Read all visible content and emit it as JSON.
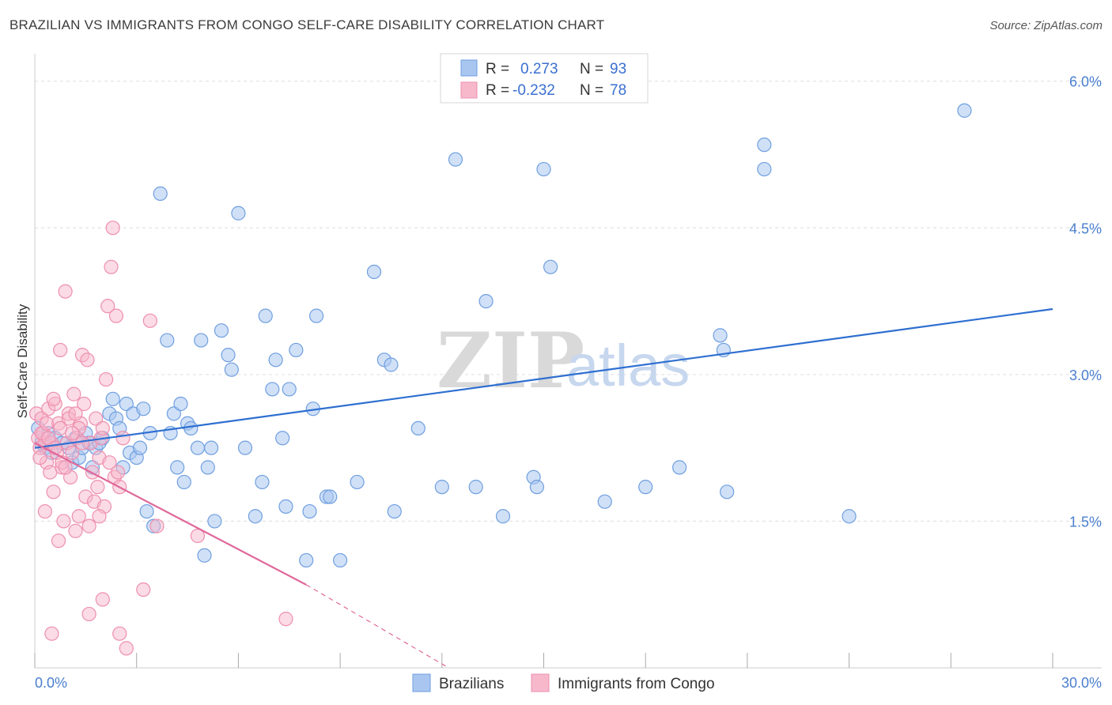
{
  "title": "BRAZILIAN VS IMMIGRANTS FROM CONGO SELF-CARE DISABILITY CORRELATION CHART",
  "source": "Source: ZipAtlas.com",
  "watermark": {
    "zip": "ZIP",
    "atlas": "atlas"
  },
  "legend": {
    "r_label": "R =",
    "n_label": "N =",
    "series": [
      {
        "r": "0.273",
        "n": "93"
      },
      {
        "r": "-0.232",
        "n": "78"
      }
    ]
  },
  "colors": {
    "blue_fill": "#a9c6f0",
    "blue_stroke": "#6f9fe0",
    "blue_line": "#2e6fd1",
    "pink_fill": "#f7b8cc",
    "pink_stroke": "#ee8fae",
    "pink_line": "#e0689a",
    "grid": "#dddddd",
    "axis_label": "#4a7fcf"
  },
  "chart_data": {
    "type": "scatter",
    "title": "BRAZILIAN VS IMMIGRANTS FROM CONGO SELF-CARE DISABILITY CORRELATION CHART",
    "xlabel": "",
    "ylabel": "Self-Care Disability",
    "xlim": [
      0,
      30
    ],
    "ylim": [
      0,
      6.2
    ],
    "x_tick_labels": [
      "0.0%",
      "30.0%"
    ],
    "y_ticks": [
      1.5,
      3.0,
      4.5,
      6.0
    ],
    "y_tick_labels": [
      "1.5%",
      "3.0%",
      "4.5%",
      "6.0%"
    ],
    "grid": true,
    "series": [
      {
        "name": "Brazilians",
        "color": "#6f9fe0",
        "points": [
          [
            0.1,
            2.45
          ],
          [
            0.2,
            2.3
          ],
          [
            0.3,
            2.25
          ],
          [
            0.4,
            2.4
          ],
          [
            0.5,
            2.2
          ],
          [
            0.6,
            2.35
          ],
          [
            0.8,
            2.3
          ],
          [
            1.0,
            2.25
          ],
          [
            1.1,
            2.1
          ],
          [
            1.2,
            2.35
          ],
          [
            1.3,
            2.15
          ],
          [
            1.4,
            2.25
          ],
          [
            1.5,
            2.4
          ],
          [
            1.6,
            2.3
          ],
          [
            1.7,
            2.05
          ],
          [
            1.8,
            2.25
          ],
          [
            1.9,
            2.3
          ],
          [
            2.0,
            2.35
          ],
          [
            2.2,
            2.6
          ],
          [
            2.3,
            2.75
          ],
          [
            2.4,
            2.55
          ],
          [
            2.5,
            2.45
          ],
          [
            2.6,
            2.05
          ],
          [
            2.7,
            2.7
          ],
          [
            2.8,
            2.2
          ],
          [
            2.9,
            2.6
          ],
          [
            3.0,
            2.15
          ],
          [
            3.1,
            2.25
          ],
          [
            3.2,
            2.65
          ],
          [
            3.3,
            1.6
          ],
          [
            3.4,
            2.4
          ],
          [
            3.5,
            1.45
          ],
          [
            3.7,
            4.85
          ],
          [
            3.9,
            3.35
          ],
          [
            4.0,
            2.4
          ],
          [
            4.1,
            2.6
          ],
          [
            4.2,
            2.05
          ],
          [
            4.3,
            2.7
          ],
          [
            4.4,
            1.9
          ],
          [
            4.5,
            2.5
          ],
          [
            4.6,
            2.45
          ],
          [
            4.8,
            2.25
          ],
          [
            4.9,
            3.35
          ],
          [
            5.0,
            1.15
          ],
          [
            5.1,
            2.05
          ],
          [
            5.2,
            2.25
          ],
          [
            5.3,
            1.5
          ],
          [
            5.5,
            3.45
          ],
          [
            5.7,
            3.2
          ],
          [
            5.8,
            3.05
          ],
          [
            6.0,
            4.65
          ],
          [
            6.2,
            2.25
          ],
          [
            6.5,
            1.55
          ],
          [
            6.7,
            1.9
          ],
          [
            6.8,
            3.6
          ],
          [
            7.0,
            2.85
          ],
          [
            7.1,
            3.15
          ],
          [
            7.3,
            2.35
          ],
          [
            7.4,
            1.65
          ],
          [
            7.5,
            2.85
          ],
          [
            7.7,
            3.25
          ],
          [
            8.0,
            1.1
          ],
          [
            8.1,
            1.6
          ],
          [
            8.2,
            2.65
          ],
          [
            8.3,
            3.6
          ],
          [
            8.6,
            1.75
          ],
          [
            8.7,
            1.75
          ],
          [
            9.5,
            1.9
          ],
          [
            10.0,
            4.05
          ],
          [
            10.3,
            3.15
          ],
          [
            10.5,
            3.1
          ],
          [
            10.6,
            1.6
          ],
          [
            11.3,
            2.45
          ],
          [
            12.0,
            1.85
          ],
          [
            12.4,
            5.2
          ],
          [
            13.0,
            1.85
          ],
          [
            13.3,
            3.75
          ],
          [
            13.8,
            1.55
          ],
          [
            14.7,
            1.95
          ],
          [
            14.8,
            1.85
          ],
          [
            15.0,
            5.1
          ],
          [
            15.2,
            4.1
          ],
          [
            16.8,
            1.7
          ],
          [
            18.0,
            1.85
          ],
          [
            19.0,
            2.05
          ],
          [
            20.2,
            3.4
          ],
          [
            20.3,
            3.25
          ],
          [
            20.4,
            1.8
          ],
          [
            21.5,
            5.35
          ],
          [
            21.5,
            5.1
          ],
          [
            24.0,
            1.55
          ],
          [
            27.4,
            5.7
          ],
          [
            9.0,
            1.1
          ]
        ],
        "trend": [
          [
            0,
            2.25
          ],
          [
            30,
            3.67
          ]
        ]
      },
      {
        "name": "Immigrants from Congo",
        "color": "#ee8fae",
        "points": [
          [
            0.05,
            2.6
          ],
          [
            0.1,
            2.35
          ],
          [
            0.15,
            2.25
          ],
          [
            0.2,
            2.55
          ],
          [
            0.25,
            2.4
          ],
          [
            0.3,
            2.3
          ],
          [
            0.35,
            2.1
          ],
          [
            0.4,
            2.65
          ],
          [
            0.45,
            2.0
          ],
          [
            0.5,
            2.3
          ],
          [
            0.55,
            1.8
          ],
          [
            0.6,
            2.7
          ],
          [
            0.65,
            2.2
          ],
          [
            0.7,
            2.5
          ],
          [
            0.75,
            3.25
          ],
          [
            0.8,
            2.05
          ],
          [
            0.85,
            1.5
          ],
          [
            0.9,
            3.85
          ],
          [
            0.95,
            2.3
          ],
          [
            1.0,
            2.6
          ],
          [
            1.05,
            1.95
          ],
          [
            1.1,
            2.2
          ],
          [
            1.15,
            2.8
          ],
          [
            1.2,
            1.4
          ],
          [
            1.25,
            2.35
          ],
          [
            1.3,
            1.55
          ],
          [
            1.35,
            2.5
          ],
          [
            1.4,
            3.2
          ],
          [
            1.45,
            2.7
          ],
          [
            1.5,
            1.75
          ],
          [
            1.55,
            3.15
          ],
          [
            1.6,
            1.45
          ],
          [
            1.65,
            2.3
          ],
          [
            1.7,
            2.0
          ],
          [
            1.75,
            1.7
          ],
          [
            1.8,
            2.55
          ],
          [
            1.85,
            1.85
          ],
          [
            1.9,
            2.15
          ],
          [
            1.95,
            2.35
          ],
          [
            2.0,
            2.45
          ],
          [
            2.05,
            1.65
          ],
          [
            2.1,
            2.95
          ],
          [
            2.15,
            3.7
          ],
          [
            2.2,
            2.1
          ],
          [
            2.25,
            4.1
          ],
          [
            2.3,
            4.5
          ],
          [
            2.35,
            1.95
          ],
          [
            2.4,
            3.6
          ],
          [
            2.45,
            2.0
          ],
          [
            2.5,
            1.85
          ],
          [
            0.3,
            1.6
          ],
          [
            0.5,
            0.35
          ],
          [
            0.7,
            1.3
          ],
          [
            1.0,
            2.55
          ],
          [
            1.2,
            2.6
          ],
          [
            0.2,
            2.4
          ],
          [
            0.4,
            2.35
          ],
          [
            0.6,
            2.25
          ],
          [
            0.8,
            2.1
          ],
          [
            1.6,
            0.55
          ],
          [
            2.0,
            0.7
          ],
          [
            2.5,
            0.35
          ],
          [
            2.7,
            0.2
          ],
          [
            3.2,
            0.8
          ],
          [
            3.6,
            1.45
          ],
          [
            4.8,
            1.35
          ],
          [
            0.9,
            2.05
          ],
          [
            1.3,
            2.45
          ],
          [
            0.15,
            2.15
          ],
          [
            0.35,
            2.5
          ],
          [
            0.55,
            2.75
          ],
          [
            0.75,
            2.45
          ],
          [
            1.1,
            2.4
          ],
          [
            1.4,
            2.3
          ],
          [
            1.9,
            1.55
          ],
          [
            2.6,
            2.35
          ],
          [
            3.4,
            3.55
          ],
          [
            7.4,
            0.5
          ]
        ],
        "trend": [
          [
            0,
            2.3
          ],
          [
            8,
            0.85
          ]
        ],
        "trend_extension": [
          [
            8,
            0.85
          ],
          [
            12.2,
            0.0
          ]
        ]
      }
    ]
  },
  "bottom_legend": [
    "Brazilians",
    "Immigrants from Congo"
  ]
}
